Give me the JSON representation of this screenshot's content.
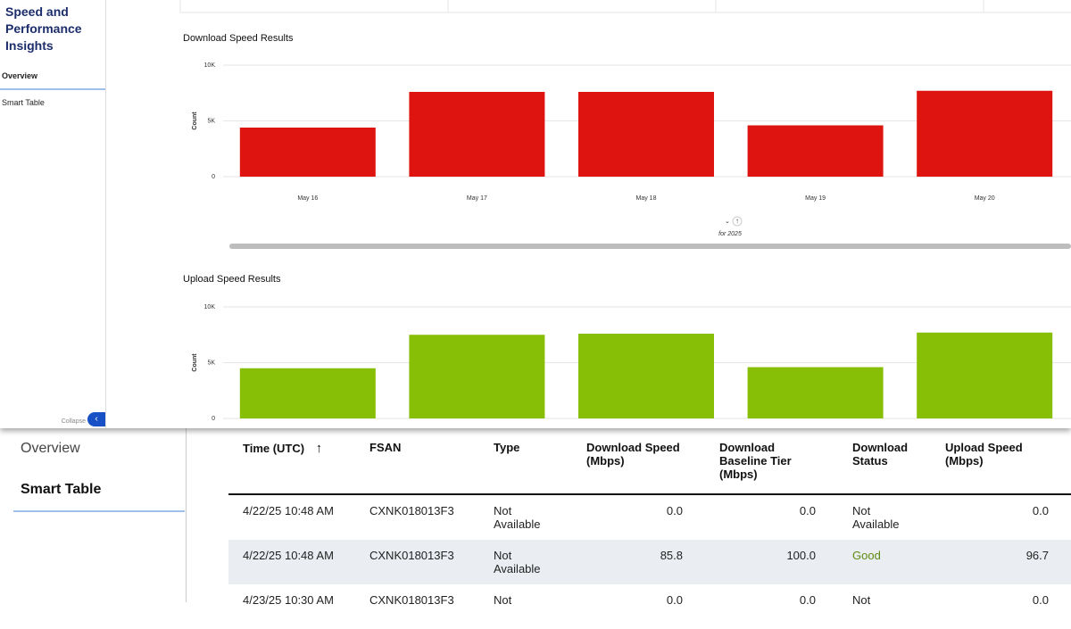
{
  "sidebar": {
    "title": "Speed and Performance Insights",
    "items": [
      "Overview",
      "Smart Table"
    ],
    "collapse": "Collapse"
  },
  "charts": [
    {
      "type": "bar",
      "title": "Download Speed Results",
      "y_label": "Count",
      "color": "#dd1410",
      "categories": [
        "May 16",
        "May 17",
        "May 18",
        "May 19",
        "May 20"
      ],
      "values": [
        4400,
        7600,
        7600,
        4600,
        7700
      ],
      "ylim": [
        0,
        10000
      ],
      "yticks": [
        0,
        {
          "value": 5000,
          "label": "5K"
        },
        {
          "value": 10000,
          "label": "10K"
        }
      ],
      "x_note": "for 2025",
      "grid": true
    },
    {
      "type": "bar",
      "title": "Upload Speed Results",
      "y_label": "Count",
      "color": "#86bf06",
      "values": [
        4500,
        7500,
        7600,
        4600,
        7700
      ],
      "ylim": [
        0,
        10000
      ],
      "yticks": [
        0,
        {
          "value": 5000,
          "label": "5K"
        },
        {
          "value": 10000,
          "label": "10K"
        }
      ],
      "grid": true
    }
  ],
  "page_nav": {
    "items": [
      "Overview",
      "Smart Table"
    ]
  },
  "table": {
    "headers": [
      "Time (UTC)",
      "FSAN",
      "Type",
      "Download Speed (Mbps)",
      "Download Baseline Tier (Mbps)",
      "Download Status",
      "Upload Speed (Mbps)"
    ],
    "rows": [
      [
        "4/22/25 10:48 AM",
        "CXNK018013F3",
        "Not Available",
        "0.0",
        "0.0",
        "Not Available",
        "0.0"
      ],
      [
        "4/22/25 10:48 AM",
        "CXNK018013F3",
        "Not Available",
        "85.8",
        "100.0",
        "Good",
        "96.7"
      ],
      [
        "4/23/25 10:30 AM",
        "CXNK018013F3",
        "Not",
        "0.0",
        "0.0",
        "Not",
        "0.0"
      ]
    ]
  }
}
